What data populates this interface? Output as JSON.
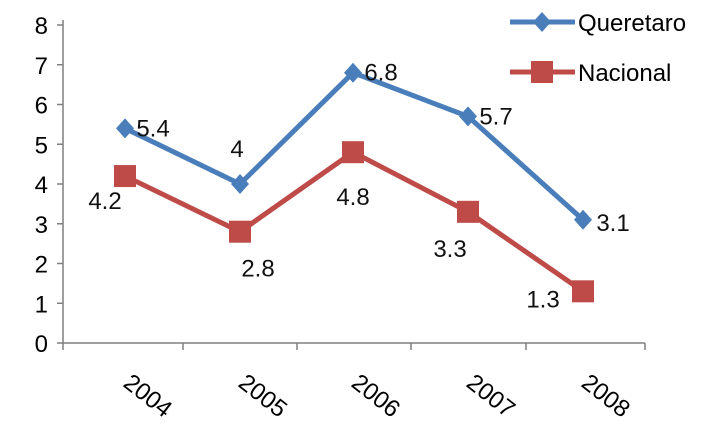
{
  "chart_data": {
    "type": "line",
    "categories": [
      "2004",
      "2005",
      "2006",
      "2007",
      "2008"
    ],
    "series": [
      {
        "name": "Queretaro",
        "values": [
          5.4,
          4,
          6.8,
          5.7,
          3.1
        ],
        "labels": [
          "5.4",
          "4",
          "6.8",
          "5.7",
          "3.1"
        ],
        "color": "#4a7ebb",
        "marker": "diamond"
      },
      {
        "name": "Nacional",
        "values": [
          4.2,
          2.8,
          4.8,
          3.3,
          1.3
        ],
        "labels": [
          "4.2",
          "2.8",
          "4.8",
          "3.3",
          "1.3"
        ],
        "color": "#be4b48",
        "marker": "square"
      }
    ],
    "yticks": [
      "0",
      "1",
      "2",
      "3",
      "4",
      "5",
      "6",
      "7",
      "8"
    ],
    "ylim": [
      0,
      8
    ],
    "grid": false,
    "legend": "top-right"
  }
}
